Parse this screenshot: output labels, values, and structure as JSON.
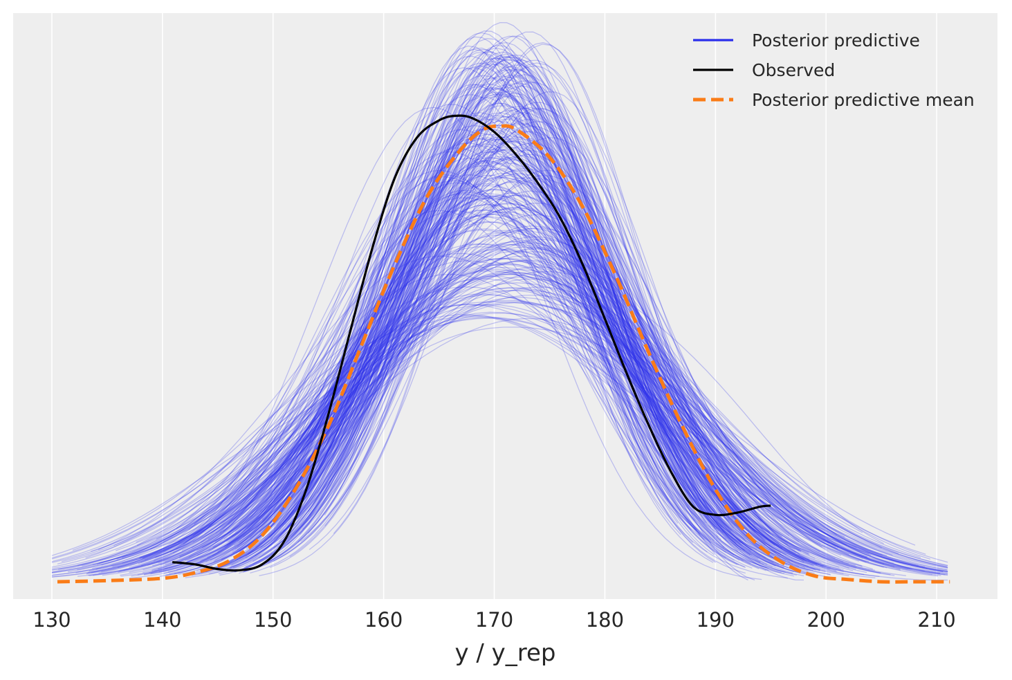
{
  "chart_data": {
    "type": "line",
    "title": "",
    "xlabel": "y / y_rep",
    "ylabel": "",
    "xlim": [
      126.5,
      215.5
    ],
    "ylim": [
      -0.0015,
      0.0493
    ],
    "xticks": [
      130,
      140,
      150,
      160,
      170,
      180,
      190,
      200,
      210
    ],
    "yticks_shown": false,
    "grid": true,
    "legend_position": "top-right",
    "posterior_predictive_draws": {
      "count_approx": 300,
      "mean_approx": 170.6,
      "sd_approx": 8.7,
      "peak_density_range": [
        0.0225,
        0.0475
      ],
      "x_range_approx": [
        130,
        211
      ]
    },
    "series": [
      {
        "name": "Posterior predictive",
        "style": "thin translucent lines",
        "color": "#2a2eec"
      },
      {
        "name": "Observed",
        "style": "solid",
        "color": "#000000",
        "x": [
          140.9,
          143,
          145,
          147,
          149,
          151,
          153,
          155,
          157,
          159,
          161,
          163,
          165,
          166.5,
          168,
          170,
          172,
          174,
          176,
          178,
          180,
          182,
          184,
          186,
          188,
          190,
          192,
          194,
          195
        ],
        "y": [
          0.0017,
          0.0015,
          0.0011,
          0.001,
          0.0015,
          0.0035,
          0.008,
          0.0145,
          0.0218,
          0.029,
          0.035,
          0.0385,
          0.04,
          0.0404,
          0.0402,
          0.039,
          0.037,
          0.0345,
          0.0315,
          0.0275,
          0.0228,
          0.018,
          0.0135,
          0.0095,
          0.0065,
          0.0058,
          0.006,
          0.0065,
          0.0066
        ]
      },
      {
        "name": "Posterior predictive mean",
        "style": "dashed",
        "color": "#fa7c17",
        "x": [
          130.5,
          135,
          140,
          143,
          146,
          149,
          152,
          155,
          158,
          161,
          164,
          167,
          169,
          170.5,
          172,
          175,
          178,
          181,
          184,
          187,
          190,
          193,
          196,
          199,
          202,
          205,
          208,
          211.2
        ],
        "y": [
          0.0,
          0.0001,
          0.0003,
          0.0008,
          0.0018,
          0.004,
          0.008,
          0.0135,
          0.0205,
          0.0275,
          0.0335,
          0.0375,
          0.0392,
          0.0395,
          0.0392,
          0.0368,
          0.0325,
          0.0265,
          0.0198,
          0.0135,
          0.008,
          0.004,
          0.0017,
          0.0005,
          0.0002,
          0.0,
          0.0,
          0.0
        ]
      }
    ]
  }
}
